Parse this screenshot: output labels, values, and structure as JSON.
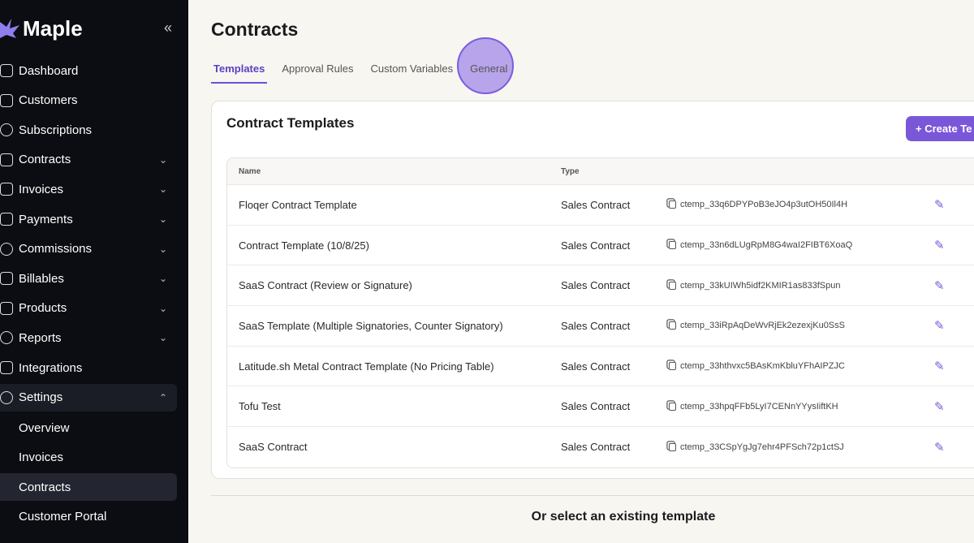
{
  "app": {
    "name": "Maple",
    "collapse_icon": "chevrons-left-icon"
  },
  "sidebar": {
    "items": [
      {
        "label": "Dashboard",
        "icon": "chart-icon"
      },
      {
        "label": "Customers",
        "icon": "users-icon"
      },
      {
        "label": "Subscriptions",
        "icon": "dollar-circle-icon"
      },
      {
        "label": "Contracts",
        "icon": "contract-icon",
        "expandable": true
      },
      {
        "label": "Invoices",
        "icon": "invoice-icon",
        "expandable": true
      },
      {
        "label": "Payments",
        "icon": "book-icon",
        "expandable": true
      },
      {
        "label": "Commissions",
        "icon": "badge-icon",
        "expandable": true
      },
      {
        "label": "Billables",
        "icon": "billables-icon",
        "expandable": true
      },
      {
        "label": "Products",
        "icon": "box-icon",
        "expandable": true
      },
      {
        "label": "Reports",
        "icon": "pie-icon",
        "expandable": true
      },
      {
        "label": "Integrations",
        "icon": "puzzle-icon"
      },
      {
        "label": "Settings",
        "icon": "gear-icon",
        "expanded": true
      }
    ],
    "settings_sub": [
      "Overview",
      "Invoices",
      "Contracts",
      "Customer Portal"
    ],
    "active_sub": "Contracts"
  },
  "page": {
    "title": "Contracts",
    "tabs": [
      "Templates",
      "Approval Rules",
      "Custom Variables",
      "General"
    ],
    "active_tab": "Templates"
  },
  "card": {
    "title": "Contract Templates",
    "create_label": "+ Create Te"
  },
  "table": {
    "headers": [
      "Name",
      "Type"
    ],
    "rows": [
      {
        "name": "Floqer Contract Template",
        "type": "Sales Contract",
        "id": "ctemp_33q6DPYPoB3eJO4p3utOH50Il4H"
      },
      {
        "name": "Contract Template (10/8/25)",
        "type": "Sales Contract",
        "id": "ctemp_33n6dLUgRpM8G4waI2FIBT6XoaQ"
      },
      {
        "name": "SaaS Contract (Review or Signature)",
        "type": "Sales Contract",
        "id": "ctemp_33kUIWh5idf2KMIR1as833fSpun"
      },
      {
        "name": "SaaS Template (Multiple Signatories, Counter Signatory)",
        "type": "Sales Contract",
        "id": "ctemp_33iRpAqDeWvRjEk2ezexjKu0SsS"
      },
      {
        "name": "Latitude.sh Metal Contract Template (No Pricing Table)",
        "type": "Sales Contract",
        "id": "ctemp_33hthvxc5BAsKmKbluYFhAIPZJC"
      },
      {
        "name": "Tofu Test",
        "type": "Sales Contract",
        "id": "ctemp_33hpqFFb5LyI7CENnYYysIiftKH"
      },
      {
        "name": "SaaS Contract",
        "type": "Sales Contract",
        "id": "ctemp_33CSpYgJg7ehr4PFSch72p1ctSJ"
      }
    ]
  },
  "footer": {
    "text": "Or select an existing template"
  },
  "colors": {
    "accent": "#7a57d9",
    "sidebar_bg": "#0b0d12",
    "page_bg": "#f8f6f1"
  }
}
